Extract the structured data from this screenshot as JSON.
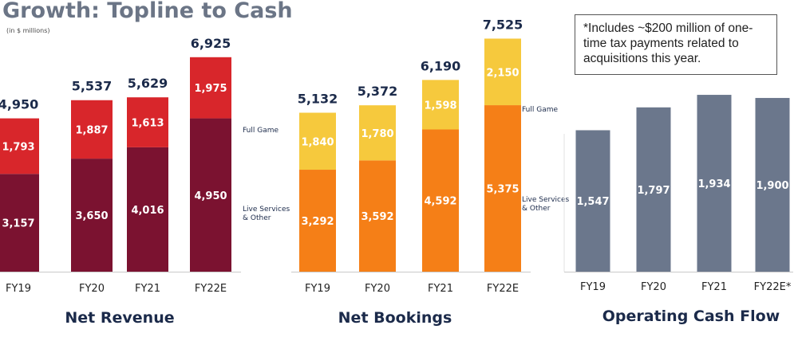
{
  "title": "Growth: Topline to Cash",
  "units_note": "(in $ millions)",
  "footnote": "*Includes ~$200 million of one-time tax payments related to acquisitions this year.",
  "chart_data": [
    {
      "type": "bar",
      "stacked": true,
      "title": "Net Revenue",
      "categories": [
        "FY19",
        "FY20",
        "FY21",
        "FY22E"
      ],
      "series": [
        {
          "name": "Live Services & Other",
          "values": [
            3157,
            3650,
            4016,
            4950
          ],
          "color": "#7b1230"
        },
        {
          "name": "Full Game",
          "values": [
            1793,
            1887,
            1613,
            1975
          ],
          "color": "#d8262b"
        }
      ],
      "totals": [
        "4,950",
        "5,537",
        "5,629",
        "6,925"
      ],
      "segment_labels": [
        [
          "3,157",
          "3,650",
          "4,016",
          "4,950"
        ],
        [
          "1,793",
          "1,887",
          "1,613",
          "1,975"
        ]
      ],
      "ylim": [
        0,
        8000
      ]
    },
    {
      "type": "bar",
      "stacked": true,
      "title": "Net Bookings",
      "categories": [
        "FY19",
        "FY20",
        "FY21",
        "FY22E"
      ],
      "series": [
        {
          "name": "Live Services & Other",
          "values": [
            3292,
            3592,
            4592,
            5375
          ],
          "color": "#f57f17"
        },
        {
          "name": "Full Game",
          "values": [
            1840,
            1780,
            1598,
            2150
          ],
          "color": "#f6c93d"
        }
      ],
      "totals": [
        "5,132",
        "5,372",
        "6,190",
        "7,525"
      ],
      "segment_labels": [
        [
          "3,292",
          "3,592",
          "4,592",
          "5,375"
        ],
        [
          "1,840",
          "1,780",
          "1,598",
          "2,150"
        ]
      ],
      "ylim": [
        0,
        8000
      ]
    },
    {
      "type": "bar",
      "stacked": false,
      "title": "Operating Cash Flow",
      "categories": [
        "FY19",
        "FY20",
        "FY21",
        "FY22E*"
      ],
      "series": [
        {
          "values": [
            1547,
            1797,
            1934,
            1900
          ],
          "color": "#6b778c"
        }
      ],
      "segment_labels": [
        [
          "1,547",
          "1,797",
          "1,934",
          "1,900"
        ]
      ],
      "ylim": [
        0,
        2100
      ]
    }
  ]
}
